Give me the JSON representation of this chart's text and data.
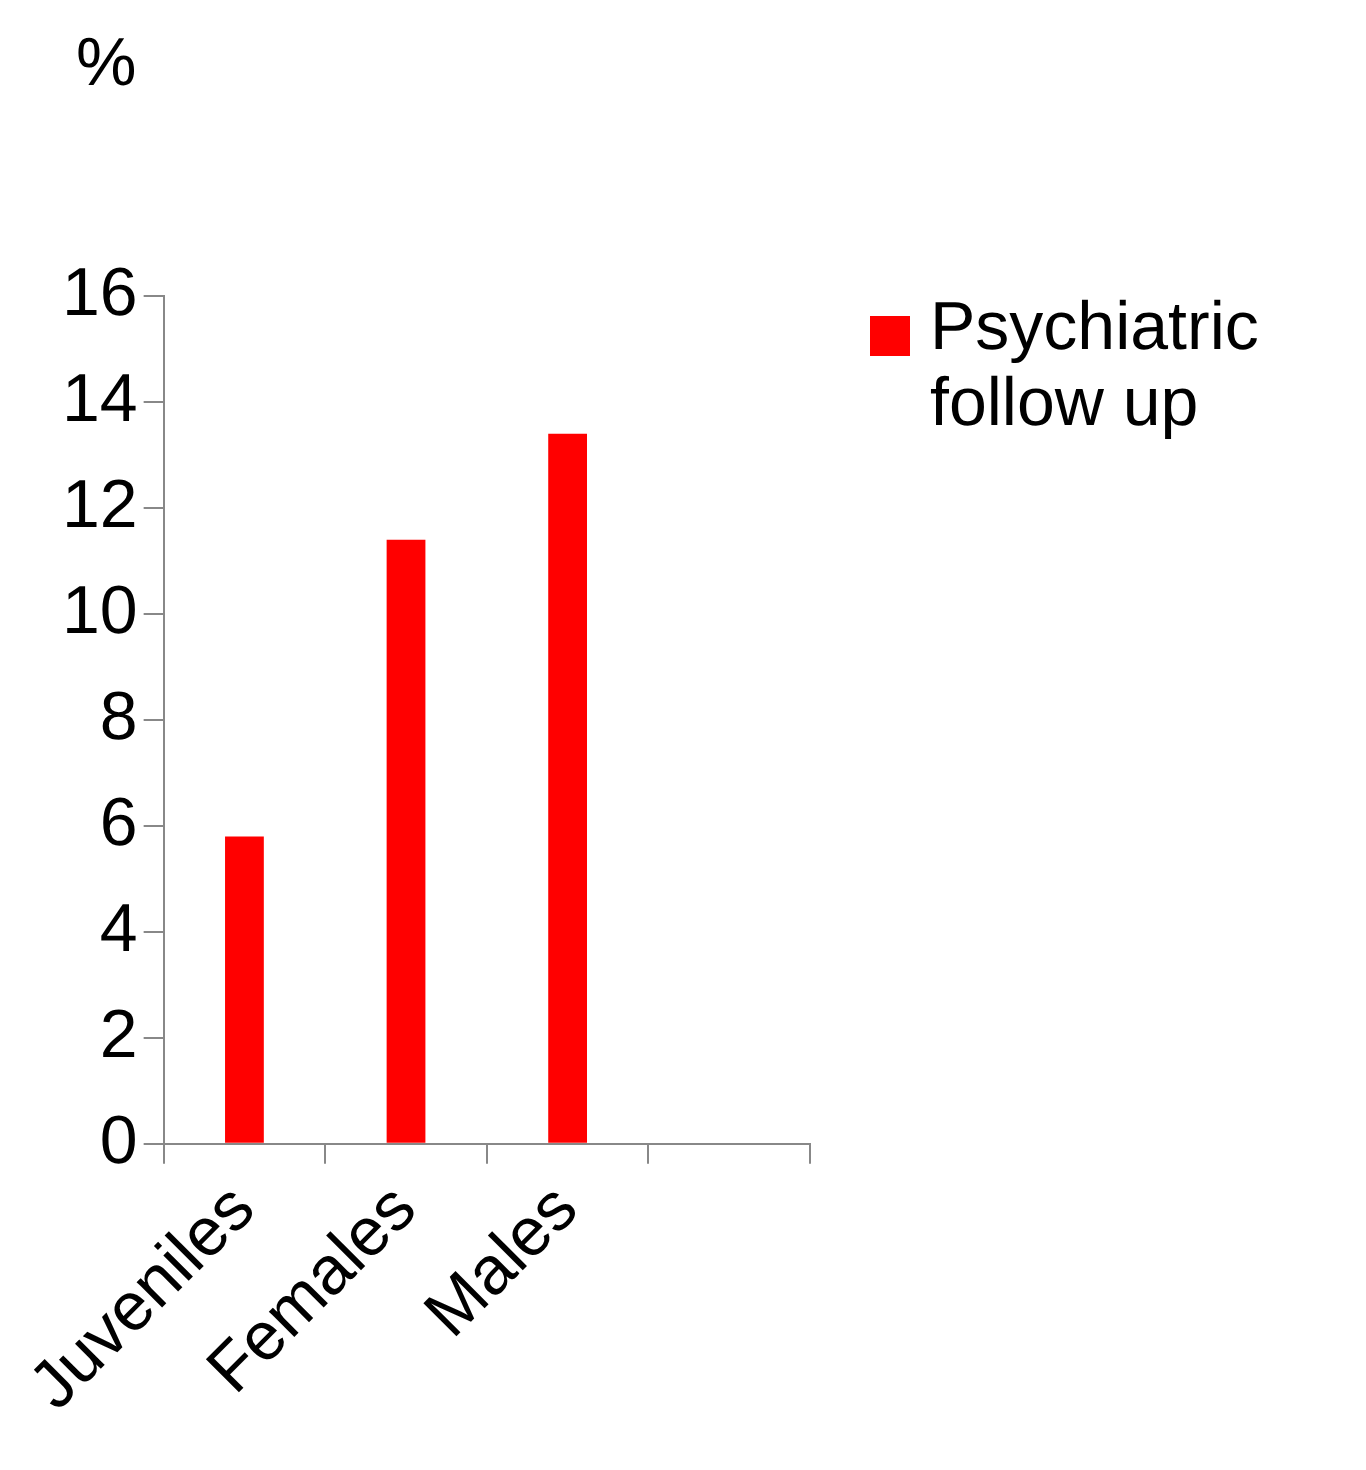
{
  "chart_data": {
    "type": "bar",
    "ylabel": "%",
    "categories": [
      "Juveniles",
      "Females",
      "Males",
      null
    ],
    "series": [
      {
        "name": "Psychiatric follow up",
        "color": "#ff0000",
        "values": [
          5.8,
          11.4,
          13.4,
          null
        ]
      }
    ],
    "ylim": [
      0,
      16
    ],
    "yticks": [
      0,
      2,
      4,
      6,
      8,
      10,
      12,
      14,
      16
    ],
    "grid": false,
    "legend": "top right"
  }
}
